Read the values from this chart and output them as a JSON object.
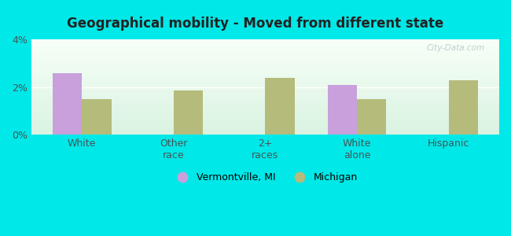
{
  "title": "Geographical mobility - Moved from different state",
  "categories": [
    "White",
    "Other\nrace",
    "2+\nraces",
    "White\nalone",
    "Hispanic"
  ],
  "vermontville_values": [
    2.6,
    0.0,
    0.0,
    2.1,
    0.0
  ],
  "michigan_values": [
    1.5,
    1.85,
    2.4,
    1.5,
    2.3
  ],
  "ylim": [
    0,
    4
  ],
  "yticks": [
    0,
    2,
    4
  ],
  "ytick_labels": [
    "0%",
    "2%",
    "4%"
  ],
  "vermontville_color": "#c9a0dc",
  "michigan_color": "#b5bb7a",
  "bg_outer": "#00e8e8",
  "legend_vermontville": "Vermontville, MI",
  "legend_michigan": "Michigan",
  "bar_width": 0.32,
  "watermark": "City-Data.com"
}
